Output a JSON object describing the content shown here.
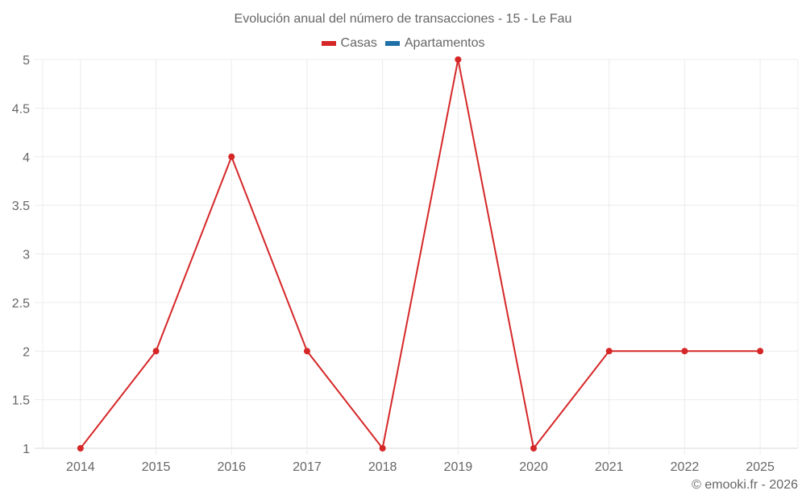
{
  "chart_data": {
    "type": "line",
    "title": "Evolución anual del número de transacciones - 15 - Le Fau",
    "categories": [
      "2014",
      "2015",
      "2016",
      "2017",
      "2018",
      "2019",
      "2020",
      "2021",
      "2022",
      "2025"
    ],
    "series": [
      {
        "name": "Casas",
        "color": "#d62728",
        "values": [
          1,
          2,
          4,
          2,
          1,
          5,
          1,
          2,
          2,
          2
        ]
      },
      {
        "name": "Apartamentos",
        "color": "#1f6fa8",
        "values": []
      }
    ],
    "xlabel": "",
    "ylabel": "",
    "ylim": [
      1,
      5
    ],
    "yticks": [
      "1",
      "1.5",
      "2",
      "2.5",
      "3",
      "3.5",
      "4",
      "4.5",
      "5"
    ],
    "grid": true,
    "legend_position": "top"
  },
  "header": {
    "title": "Evolución anual del número de transacciones - 15 - Le Fau"
  },
  "legend": {
    "items": [
      {
        "label": "Casas",
        "color": "#d62728"
      },
      {
        "label": "Apartamentos",
        "color": "#1f6fa8"
      }
    ]
  },
  "footer": {
    "credit": "© emooki.fr - 2026"
  }
}
